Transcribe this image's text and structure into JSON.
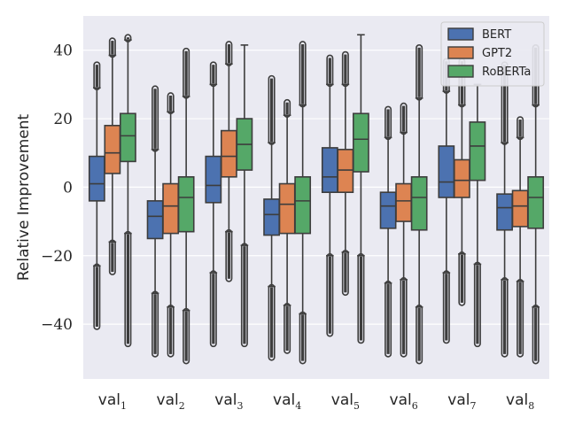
{
  "chart_data": {
    "type": "boxplot",
    "title": "",
    "xlabel": "",
    "ylabel": "Relative Improvement",
    "ylim": [
      -56,
      50
    ],
    "yticks": [
      40,
      20,
      0,
      -20,
      -40
    ],
    "ytick_labels": [
      "40",
      "20",
      "0",
      "−20",
      "−40"
    ],
    "grid": true,
    "legend_position": "top-right",
    "categories": [
      {
        "base": "val",
        "sub": "1"
      },
      {
        "base": "val",
        "sub": "2"
      },
      {
        "base": "val",
        "sub": "3"
      },
      {
        "base": "val",
        "sub": "4"
      },
      {
        "base": "val",
        "sub": "5"
      },
      {
        "base": "val",
        "sub": "6"
      },
      {
        "base": "val",
        "sub": "7"
      },
      {
        "base": "val",
        "sub": "8"
      }
    ],
    "series": [
      {
        "name": "BERT",
        "color": "#4c72b0",
        "boxes": [
          {
            "whislo": -23,
            "q1": -4,
            "med": 1,
            "q3": 9,
            "whishi": 29,
            "outlier_range": [
              [
                -41,
                -23
              ],
              [
                29,
                36
              ]
            ]
          },
          {
            "whislo": -31,
            "q1": -15,
            "med": -8.5,
            "q3": -4,
            "whishi": 11,
            "outlier_range": [
              [
                -49,
                -31
              ],
              [
                11,
                29
              ]
            ]
          },
          {
            "whislo": -25,
            "q1": -4.5,
            "med": 0.5,
            "q3": 9,
            "whishi": 30,
            "outlier_range": [
              [
                -46,
                -25
              ],
              [
                30,
                36
              ]
            ]
          },
          {
            "whislo": -29,
            "q1": -14,
            "med": -8,
            "q3": -3.5,
            "whishi": 13,
            "outlier_range": [
              [
                -50,
                -29
              ],
              [
                13,
                32
              ]
            ]
          },
          {
            "whislo": -20,
            "q1": -1.5,
            "med": 3,
            "q3": 11.5,
            "whishi": 30,
            "outlier_range": [
              [
                -43,
                -20
              ],
              [
                30,
                38
              ]
            ]
          },
          {
            "whislo": -28,
            "q1": -12,
            "med": -5.5,
            "q3": -1.5,
            "whishi": 14.5,
            "outlier_range": [
              [
                -49,
                -28
              ],
              [
                14.5,
                23
              ]
            ]
          },
          {
            "whislo": -25,
            "q1": -3,
            "med": 1.5,
            "q3": 12,
            "whishi": 28,
            "outlier_range": [
              [
                -45,
                -25
              ],
              [
                28,
                37
              ]
            ]
          },
          {
            "whislo": -27,
            "q1": -12.5,
            "med": -6,
            "q3": -2,
            "whishi": 13,
            "outlier_range": [
              [
                -49,
                -27
              ],
              [
                13,
                36
              ]
            ]
          }
        ]
      },
      {
        "name": "GPT2",
        "color": "#dd8452",
        "boxes": [
          {
            "whislo": -16,
            "q1": 4,
            "med": 10,
            "q3": 18,
            "whishi": 38.5,
            "outlier_range": [
              [
                -25,
                -16
              ],
              [
                38.5,
                43
              ]
            ]
          },
          {
            "whislo": -35,
            "q1": -13.5,
            "med": -5.5,
            "q3": 1,
            "whishi": 22,
            "outlier_range": [
              [
                -49,
                -35
              ],
              [
                22,
                27
              ]
            ]
          },
          {
            "whislo": -13,
            "q1": 3,
            "med": 9,
            "q3": 16.5,
            "whishi": 36,
            "outlier_range": [
              [
                -27,
                -13
              ],
              [
                36,
                42
              ]
            ]
          },
          {
            "whislo": -34.5,
            "q1": -13.5,
            "med": -5,
            "q3": 1,
            "whishi": 21,
            "outlier_range": [
              [
                -48,
                -34.5
              ],
              [
                21,
                25
              ]
            ]
          },
          {
            "whislo": -19,
            "q1": -1.5,
            "med": 5,
            "q3": 11,
            "whishi": 30,
            "outlier_range": [
              [
                -31,
                -19
              ],
              [
                30,
                39
              ]
            ]
          },
          {
            "whislo": -27,
            "q1": -10,
            "med": -4,
            "q3": 1,
            "whishi": 16,
            "outlier_range": [
              [
                -49,
                -27
              ],
              [
                16,
                24
              ]
            ]
          },
          {
            "whislo": -19.5,
            "q1": -3,
            "med": 2,
            "q3": 8,
            "whishi": 24,
            "outlier_range": [
              [
                -34,
                -19.5
              ],
              [
                24,
                37
              ]
            ]
          },
          {
            "whislo": -27.5,
            "q1": -11.5,
            "med": -5.5,
            "q3": -1,
            "whishi": 14.5,
            "outlier_range": [
              [
                -49,
                -27.5
              ],
              [
                14.5,
                20
              ]
            ]
          }
        ]
      },
      {
        "name": "RoBERTa",
        "color": "#55a868",
        "boxes": [
          {
            "whislo": -13.5,
            "q1": 7.5,
            "med": 15,
            "q3": 21.5,
            "whishi": 43,
            "outlier_range": [
              [
                -46,
                -13.5
              ],
              [
                43,
                44
              ]
            ]
          },
          {
            "whislo": -36,
            "q1": -13,
            "med": -3,
            "q3": 3,
            "whishi": 26.5,
            "outlier_range": [
              [
                -51,
                -36
              ],
              [
                26.5,
                40
              ]
            ]
          },
          {
            "whislo": -17,
            "q1": 5,
            "med": 12.5,
            "q3": 20,
            "whishi": 41.5,
            "outlier_range": [
              [
                -46,
                -17
              ],
              [
                41.5,
                41.5
              ]
            ]
          },
          {
            "whislo": -37,
            "q1": -13.5,
            "med": -4,
            "q3": 3,
            "whishi": 24,
            "outlier_range": [
              [
                -51,
                -37
              ],
              [
                24,
                42
              ]
            ]
          },
          {
            "whislo": -20,
            "q1": 4.5,
            "med": 14,
            "q3": 21.5,
            "whishi": 44.5,
            "outlier_range": [
              [
                -45,
                -20
              ],
              [
                44.5,
                44.5
              ]
            ]
          },
          {
            "whislo": -35,
            "q1": -12.5,
            "med": -3,
            "q3": 3,
            "whishi": 26,
            "outlier_range": [
              [
                -51,
                -35
              ],
              [
                26,
                41
              ]
            ]
          },
          {
            "whislo": -22.5,
            "q1": 2,
            "med": 12,
            "q3": 19,
            "whishi": 30,
            "outlier_range": [
              [
                -46,
                -22.5
              ],
              [
                30,
                30
              ]
            ]
          },
          {
            "whislo": -35,
            "q1": -12,
            "med": -3,
            "q3": 3,
            "whishi": 24,
            "outlier_range": [
              [
                -51,
                -35
              ],
              [
                24,
                41
              ]
            ]
          }
        ]
      }
    ]
  },
  "colors": {
    "plot_background": "#eaeaf2",
    "grid": "#ffffff",
    "line": "#3d3d3d",
    "legend_background": "#eaeaf2",
    "legend_border": "#cccccc"
  }
}
